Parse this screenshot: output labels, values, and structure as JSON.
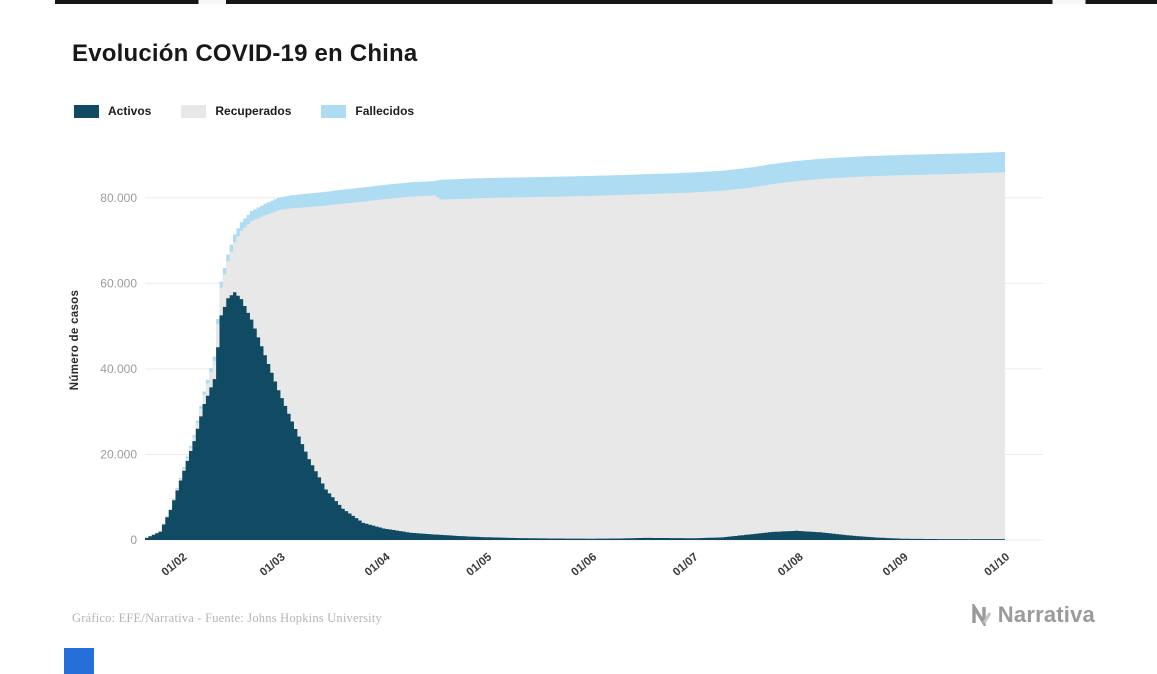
{
  "page": {
    "title": "Evolución COVID-19 en China",
    "footer_source": "Gráfico: EFE/Narrativa - Fuente: Johns Hopkins University",
    "brand": "Narrativa"
  },
  "legend": [
    {
      "label": "Activos",
      "color": "#114a63"
    },
    {
      "label": "Recuperados",
      "color": "#e8e8e8"
    },
    {
      "label": "Fallecidos",
      "color": "#aedcf2"
    }
  ],
  "chart_data": {
    "type": "bar",
    "stacked": true,
    "title": "Evolución COVID-19 en China",
    "xlabel": "",
    "ylabel": "Número de casos",
    "ylim": [
      0,
      93500
    ],
    "grid": "horizontal",
    "legend_position": "top-left",
    "series_names": [
      "Activos",
      "Recuperados",
      "Fallecidos"
    ],
    "yticks": [
      {
        "value": 0,
        "label": "0"
      },
      {
        "value": 20000,
        "label": "20.000"
      },
      {
        "value": 40000,
        "label": "40.000"
      },
      {
        "value": 60000,
        "label": "60.000"
      },
      {
        "value": 80000,
        "label": "80.000"
      }
    ],
    "xticks": [
      {
        "day": 10,
        "label": "01/02"
      },
      {
        "day": 39,
        "label": "01/03"
      },
      {
        "day": 70,
        "label": "01/04"
      },
      {
        "day": 100,
        "label": "01/05"
      },
      {
        "day": 131,
        "label": "01/06"
      },
      {
        "day": 161,
        "label": "01/07"
      },
      {
        "day": 192,
        "label": "01/08"
      },
      {
        "day": 223,
        "label": "01/09"
      },
      {
        "day": 253,
        "label": "01/10"
      }
    ],
    "days_total": 253,
    "keypoints_note": "d = day offset within the plotted range; a=Activos, r=Recuperados, f=Fallecidos (values estimated from gridlines)",
    "keypoints": [
      {
        "d": 0,
        "a": 510,
        "r": 25,
        "f": 17
      },
      {
        "d": 4,
        "a": 1950,
        "r": 50,
        "f": 56
      },
      {
        "d": 7,
        "a": 7000,
        "r": 130,
        "f": 170
      },
      {
        "d": 10,
        "a": 13900,
        "r": 330,
        "f": 305
      },
      {
        "d": 14,
        "a": 23100,
        "r": 910,
        "f": 490
      },
      {
        "d": 17,
        "a": 31800,
        "r": 2180,
        "f": 724
      },
      {
        "d": 20,
        "a": 37600,
        "r": 4280,
        "f": 1017
      },
      {
        "d": 22,
        "a": 52500,
        "r": 6530,
        "f": 1369
      },
      {
        "d": 24,
        "a": 56500,
        "r": 8680,
        "f": 1524
      },
      {
        "d": 26,
        "a": 57900,
        "r": 11720,
        "f": 1776
      },
      {
        "d": 28,
        "a": 56300,
        "r": 16000,
        "f": 2006
      },
      {
        "d": 31,
        "a": 51500,
        "r": 23040,
        "f": 2360
      },
      {
        "d": 35,
        "a": 43200,
        "r": 32680,
        "f": 2718
      },
      {
        "d": 39,
        "a": 35000,
        "r": 42090,
        "f": 2915
      },
      {
        "d": 43,
        "a": 27700,
        "r": 49860,
        "f": 3045
      },
      {
        "d": 48,
        "a": 18900,
        "r": 58930,
        "f": 3170
      },
      {
        "d": 53,
        "a": 11800,
        "r": 66380,
        "f": 3218
      },
      {
        "d": 58,
        "a": 7300,
        "r": 71330,
        "f": 3270
      },
      {
        "d": 64,
        "a": 4000,
        "r": 75100,
        "f": 3300
      },
      {
        "d": 70,
        "a": 2700,
        "r": 76970,
        "f": 3326
      },
      {
        "d": 78,
        "a": 1700,
        "r": 78550,
        "f": 3350
      },
      {
        "d": 85,
        "a": 1300,
        "r": 79240,
        "f": 3356
      },
      {
        "d": 87,
        "a": 1200,
        "r": 78360,
        "f": 4642
      },
      {
        "d": 93,
        "a": 900,
        "r": 78850,
        "f": 4650
      },
      {
        "d": 100,
        "a": 650,
        "r": 79300,
        "f": 4653
      },
      {
        "d": 110,
        "a": 450,
        "r": 79640,
        "f": 4656
      },
      {
        "d": 120,
        "a": 350,
        "r": 79890,
        "f": 4659
      },
      {
        "d": 131,
        "a": 300,
        "r": 80140,
        "f": 4662
      },
      {
        "d": 140,
        "a": 360,
        "r": 80280,
        "f": 4664
      },
      {
        "d": 147,
        "a": 500,
        "r": 80330,
        "f": 4666
      },
      {
        "d": 155,
        "a": 450,
        "r": 80580,
        "f": 4668
      },
      {
        "d": 161,
        "a": 400,
        "r": 80830,
        "f": 4670
      },
      {
        "d": 170,
        "a": 600,
        "r": 81030,
        "f": 4675
      },
      {
        "d": 178,
        "a": 1300,
        "r": 81020,
        "f": 4683
      },
      {
        "d": 185,
        "a": 1900,
        "r": 81310,
        "f": 4695
      },
      {
        "d": 192,
        "a": 2150,
        "r": 81750,
        "f": 4705
      },
      {
        "d": 199,
        "a": 1800,
        "r": 82590,
        "f": 4715
      },
      {
        "d": 207,
        "a": 1100,
        "r": 83680,
        "f": 4722
      },
      {
        "d": 215,
        "a": 600,
        "r": 84470,
        "f": 4727
      },
      {
        "d": 223,
        "a": 300,
        "r": 84970,
        "f": 4730
      },
      {
        "d": 233,
        "a": 220,
        "r": 85250,
        "f": 4734
      },
      {
        "d": 243,
        "a": 190,
        "r": 85470,
        "f": 4736
      },
      {
        "d": 253,
        "a": 200,
        "r": 85760,
        "f": 4739
      }
    ]
  }
}
